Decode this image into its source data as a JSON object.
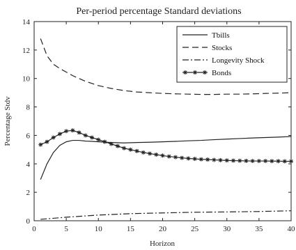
{
  "chart_data": {
    "type": "line",
    "title": "Per-period percentage Standard deviations",
    "xlabel": "Horizon",
    "ylabel": "Percentage Stdv",
    "xlim": [
      0,
      40
    ],
    "ylim": [
      0,
      14
    ],
    "xticks": [
      0,
      5,
      10,
      15,
      20,
      25,
      30,
      35,
      40
    ],
    "yticks": [
      0,
      2,
      4,
      6,
      8,
      10,
      12,
      14
    ],
    "grid": false,
    "legend_position": "top-right",
    "series": [
      {
        "name": "Tbills",
        "line_style": "solid",
        "marker": "none",
        "x": [
          1,
          2,
          3,
          4,
          5,
          6,
          7,
          8,
          9,
          10,
          12,
          14,
          16,
          18,
          20,
          22,
          24,
          26,
          28,
          30,
          32,
          34,
          36,
          38,
          40
        ],
        "y": [
          2.9,
          4.0,
          4.8,
          5.3,
          5.55,
          5.65,
          5.65,
          5.6,
          5.58,
          5.55,
          5.5,
          5.47,
          5.5,
          5.52,
          5.55,
          5.58,
          5.62,
          5.65,
          5.7,
          5.74,
          5.78,
          5.82,
          5.85,
          5.88,
          5.92
        ]
      },
      {
        "name": "Stocks",
        "line_style": "dashed",
        "marker": "none",
        "x": [
          1,
          2,
          3,
          4,
          5,
          6,
          7,
          8,
          9,
          10,
          12,
          14,
          16,
          18,
          20,
          22,
          24,
          26,
          28,
          30,
          32,
          34,
          36,
          38,
          40
        ],
        "y": [
          12.8,
          11.6,
          11.0,
          10.7,
          10.45,
          10.2,
          10.0,
          9.8,
          9.65,
          9.5,
          9.3,
          9.15,
          9.05,
          9.0,
          8.95,
          8.92,
          8.9,
          8.88,
          8.88,
          8.9,
          8.9,
          8.92,
          8.95,
          8.97,
          9.0
        ]
      },
      {
        "name": "Longevity Shock",
        "line_style": "dashdot",
        "marker": "none",
        "x": [
          1,
          5,
          10,
          15,
          20,
          25,
          30,
          35,
          40
        ],
        "y": [
          0.1,
          0.25,
          0.4,
          0.5,
          0.55,
          0.6,
          0.62,
          0.65,
          0.7
        ]
      },
      {
        "name": "Bonds",
        "line_style": "solid",
        "marker": "star",
        "x": [
          1,
          2,
          3,
          4,
          5,
          6,
          7,
          8,
          9,
          10,
          11,
          12,
          13,
          14,
          15,
          16,
          17,
          18,
          19,
          20,
          21,
          22,
          23,
          24,
          25,
          26,
          27,
          28,
          29,
          30,
          31,
          32,
          33,
          34,
          35,
          36,
          37,
          38,
          39,
          40
        ],
        "y": [
          5.35,
          5.55,
          5.85,
          6.1,
          6.3,
          6.35,
          6.2,
          6.0,
          5.85,
          5.7,
          5.55,
          5.4,
          5.25,
          5.1,
          5.0,
          4.9,
          4.8,
          4.72,
          4.65,
          4.58,
          4.52,
          4.47,
          4.42,
          4.38,
          4.35,
          4.32,
          4.3,
          4.28,
          4.26,
          4.24,
          4.23,
          4.22,
          4.21,
          4.2,
          4.2,
          4.2,
          4.19,
          4.19,
          4.18,
          4.18
        ]
      }
    ]
  }
}
